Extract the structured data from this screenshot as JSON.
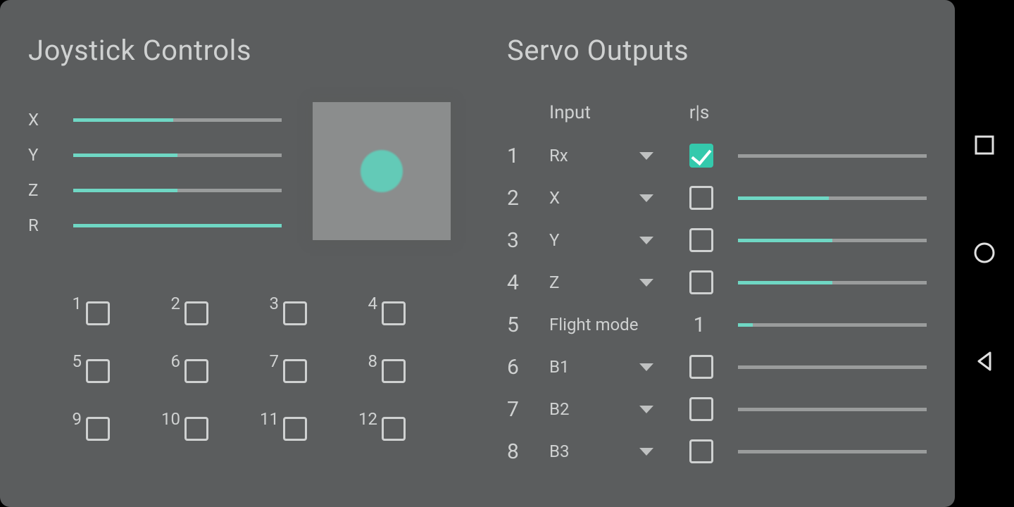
{
  "colors": {
    "background": "#5b5d5e",
    "text": "#cfd1d1",
    "accent": "#6fd7c4",
    "accent_strong": "#34c9ac",
    "track": "#9a9c9c",
    "pad_bg": "#8b8d8d",
    "checkbox_border": "#cfd1d1",
    "navbar_bg": "#000000",
    "nav_icon": "#e0e0e0"
  },
  "joystick": {
    "title": "Joystick Controls",
    "axes": [
      {
        "label": "X",
        "value": 0.48
      },
      {
        "label": "Y",
        "value": 0.5
      },
      {
        "label": "Z",
        "value": 0.5
      },
      {
        "label": "R",
        "value": 1.0
      }
    ],
    "pad": {
      "x": 0.5,
      "y": 0.5,
      "dot_color": "#63cab7"
    },
    "buttons": [
      {
        "num": "1",
        "checked": false
      },
      {
        "num": "2",
        "checked": false
      },
      {
        "num": "3",
        "checked": false
      },
      {
        "num": "4",
        "checked": false
      },
      {
        "num": "5",
        "checked": false
      },
      {
        "num": "6",
        "checked": false
      },
      {
        "num": "7",
        "checked": false
      },
      {
        "num": "8",
        "checked": false
      },
      {
        "num": "9",
        "checked": false
      },
      {
        "num": "10",
        "checked": false
      },
      {
        "num": "11",
        "checked": false
      },
      {
        "num": "12",
        "checked": false
      }
    ]
  },
  "servo": {
    "title": "Servo Outputs",
    "header": {
      "input": "Input",
      "rs": "r|s"
    },
    "rows": [
      {
        "idx": "1",
        "input": "Rx",
        "has_dropdown": true,
        "rs_type": "check",
        "rs_checked": true,
        "value": 0.0
      },
      {
        "idx": "2",
        "input": "X",
        "has_dropdown": true,
        "rs_type": "check",
        "rs_checked": false,
        "value": 0.48
      },
      {
        "idx": "3",
        "input": "Y",
        "has_dropdown": true,
        "rs_type": "check",
        "rs_checked": false,
        "value": 0.5
      },
      {
        "idx": "4",
        "input": "Z",
        "has_dropdown": true,
        "rs_type": "check",
        "rs_checked": false,
        "value": 0.5
      },
      {
        "idx": "5",
        "input": "Flight mode",
        "has_dropdown": false,
        "rs_type": "text",
        "rs_text": "1",
        "value": 0.08
      },
      {
        "idx": "6",
        "input": "B1",
        "has_dropdown": true,
        "rs_type": "check",
        "rs_checked": false,
        "value": 0.0
      },
      {
        "idx": "7",
        "input": "B2",
        "has_dropdown": true,
        "rs_type": "check",
        "rs_checked": false,
        "value": 0.0
      },
      {
        "idx": "8",
        "input": "B3",
        "has_dropdown": true,
        "rs_type": "check",
        "rs_checked": false,
        "value": 0.0
      }
    ]
  }
}
